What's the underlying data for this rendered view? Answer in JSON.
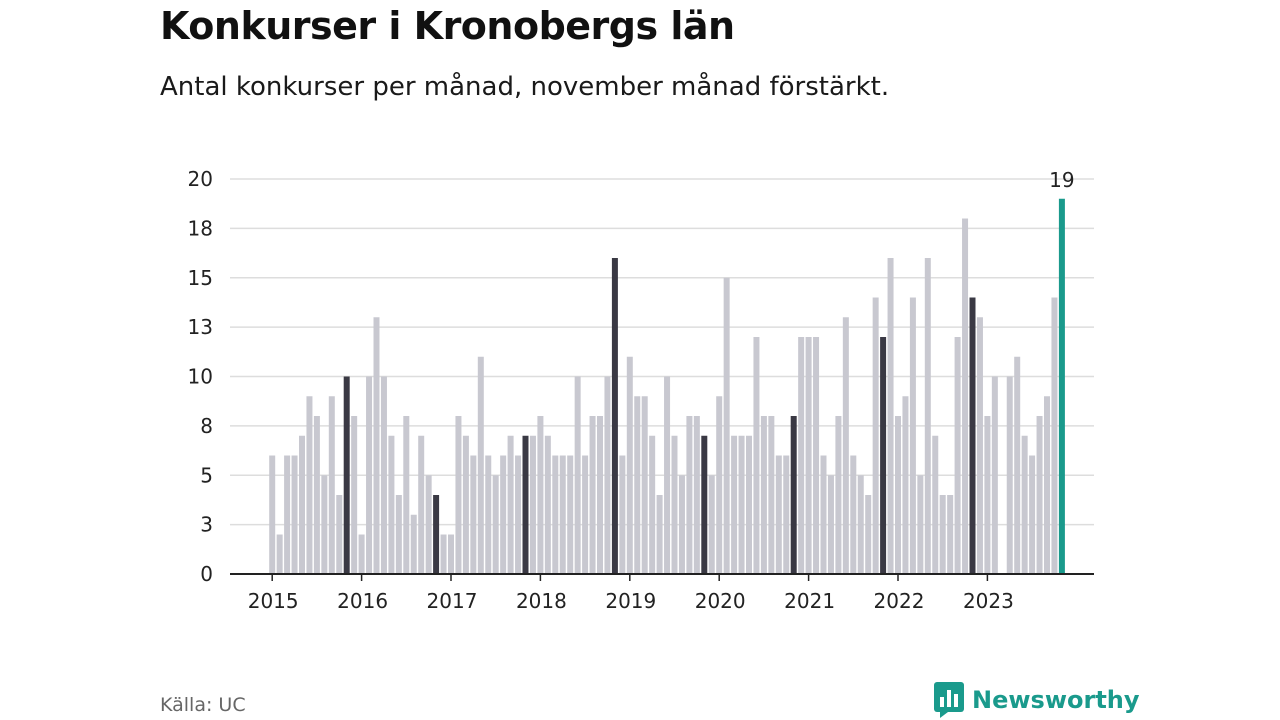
{
  "title": "Konkurser i Kronobergs län",
  "subtitle": "Antal konkurser per månad, november månad förstärkt.",
  "source": "Källa: UC",
  "brand": {
    "name": "Newsworthy",
    "icon": "newsworthy-logo-icon"
  },
  "colors": {
    "bar": "#c8c8d0",
    "highlight": "#3a3944",
    "latest": "#1a9a8c",
    "grid": "#dddddd",
    "axis": "#222222",
    "brand": "#1a9a8c"
  },
  "chart_data": {
    "type": "bar",
    "x_unit": "month",
    "start": "2015-01",
    "end": "2023-11",
    "highlight_month": "November",
    "ylim": [
      0,
      20
    ],
    "yticks": [
      0,
      2.5,
      5,
      7.5,
      10,
      12.5,
      15,
      17.5,
      20
    ],
    "ytick_labels": [
      "0",
      "3",
      "5",
      "8",
      "10",
      "13",
      "15",
      "18",
      "20"
    ],
    "xtick_labels": [
      "2015",
      "2016",
      "2017",
      "2018",
      "2019",
      "2020",
      "2021",
      "2022",
      "2023"
    ],
    "grid": true,
    "last_value_label": "19",
    "values": [
      6,
      2,
      6,
      6,
      7,
      9,
      8,
      5,
      9,
      4,
      10,
      8,
      2,
      10,
      13,
      10,
      7,
      4,
      8,
      3,
      7,
      5,
      4,
      2,
      2,
      8,
      7,
      6,
      11,
      6,
      5,
      6,
      7,
      6,
      7,
      7,
      8,
      7,
      6,
      6,
      6,
      10,
      6,
      8,
      8,
      10,
      16,
      6,
      11,
      9,
      9,
      7,
      4,
      10,
      7,
      5,
      8,
      8,
      7,
      5,
      9,
      15,
      7,
      7,
      7,
      12,
      8,
      8,
      6,
      6,
      8,
      12,
      12,
      12,
      6,
      5,
      8,
      13,
      6,
      5,
      4,
      14,
      12,
      16,
      8,
      9,
      14,
      5,
      16,
      7,
      4,
      4,
      12,
      18,
      14,
      13,
      8,
      10,
      0,
      10,
      11,
      7,
      6,
      8,
      9,
      14,
      19
    ]
  }
}
